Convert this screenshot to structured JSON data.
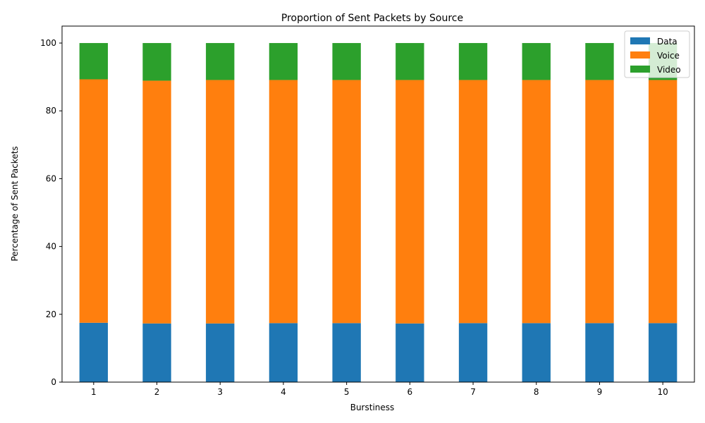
{
  "chart_data": {
    "type": "bar",
    "stacked": true,
    "title": "Proportion of Sent Packets by Source",
    "xlabel": "Burstiness",
    "ylabel": "Percentage of Sent Packets",
    "categories": [
      "1",
      "2",
      "3",
      "4",
      "5",
      "6",
      "7",
      "8",
      "9",
      "10"
    ],
    "ylim": [
      0,
      105
    ],
    "yticks": [
      0,
      20,
      40,
      60,
      80,
      100
    ],
    "grid": false,
    "legend_position": "top-right",
    "series": [
      {
        "name": "Data",
        "color": "#1f77b4",
        "values": [
          17.5,
          17.3,
          17.3,
          17.4,
          17.4,
          17.3,
          17.4,
          17.4,
          17.4,
          17.4
        ]
      },
      {
        "name": "Voice",
        "color": "#ff7f0e",
        "values": [
          71.8,
          71.6,
          71.8,
          71.7,
          71.7,
          71.8,
          71.7,
          71.7,
          71.7,
          71.7
        ]
      },
      {
        "name": "Video",
        "color": "#2ca02c",
        "values": [
          10.7,
          11.1,
          10.9,
          10.9,
          10.9,
          10.9,
          10.9,
          10.9,
          10.9,
          10.9
        ]
      }
    ]
  }
}
